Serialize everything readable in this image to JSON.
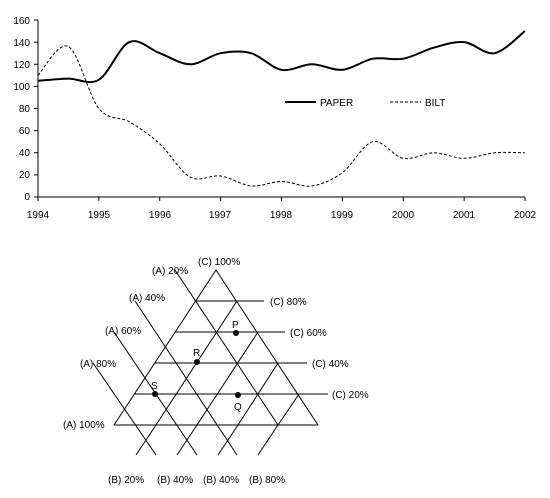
{
  "chart_data": [
    {
      "type": "line",
      "x": [
        1994,
        1994.5,
        1995,
        1995.5,
        1996,
        1996.5,
        1997,
        1997.5,
        1998,
        1998.5,
        1999,
        1999.5,
        2000,
        2000.5,
        2001,
        2001.5,
        2002
      ],
      "x_ticks": [
        "1994",
        "1995",
        "1996",
        "1997",
        "1998",
        "1999",
        "2000",
        "2001",
        "2002"
      ],
      "xlim": [
        1994,
        2002
      ],
      "ylim": [
        0,
        160
      ],
      "y_ticks": [
        "0",
        "20",
        "40",
        "60",
        "80",
        "100",
        "120",
        "140",
        "160"
      ],
      "series": [
        {
          "name": "PAPER",
          "style": "solid",
          "values": [
            105,
            107,
            106,
            140,
            130,
            120,
            130,
            130,
            115,
            120,
            115,
            125,
            125,
            135,
            140,
            130,
            150
          ]
        },
        {
          "name": "BILT",
          "style": "dashed",
          "values": [
            110,
            136,
            80,
            68,
            48,
            18,
            19,
            10,
            14,
            10,
            22,
            50,
            35,
            40,
            35,
            40,
            40
          ]
        }
      ],
      "legend": "right",
      "grid": false
    },
    {
      "type": "ternary-diagram",
      "labels": {
        "a": [
          "(A) 20%",
          "(A)  40%",
          "(A) 60%",
          "(A) 80%",
          "(A) 100%"
        ],
        "b": [
          "(B) 20%",
          "(B) 40%",
          "(B) 40%",
          "(B) 80%"
        ],
        "c": [
          "(C) 100%",
          "(C) 80%",
          "(C) 60%",
          "(C) 40%",
          "(C) 20%"
        ]
      },
      "points": [
        {
          "name": "P",
          "a": 20,
          "b": 20,
          "c": 60
        },
        {
          "name": "R",
          "a": 40,
          "b": 20,
          "c": 40
        },
        {
          "name": "S",
          "a": 60,
          "b": 20,
          "c": 20
        },
        {
          "name": "Q",
          "a": 20,
          "b": 60,
          "c": 20
        }
      ]
    }
  ]
}
